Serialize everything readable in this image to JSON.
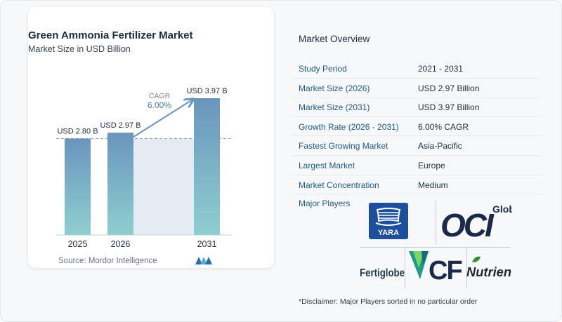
{
  "chart_data": {
    "type": "bar",
    "title": "Green Ammonia Fertilizer Market",
    "subtitle": "Market Size in USD Billion",
    "categories": [
      "2025",
      "2026",
      "2031"
    ],
    "values": [
      2.8,
      2.97,
      3.97
    ],
    "value_labels": [
      "USD 2.80 B",
      "USD 2.97 B",
      "USD 3.97 B"
    ],
    "annotation": {
      "label": "CAGR",
      "value": "6.00%"
    },
    "ylim": [
      0,
      4.2
    ],
    "grid": false,
    "bar_colors": {
      "top": "#6a95bd",
      "bottom": "#8ecfcf"
    },
    "reference_line": "dashed at 2025 level"
  },
  "source": "Source:  Mordor Intelligence",
  "overview": {
    "title": "Market Overview",
    "rows": [
      {
        "label": "Study Period",
        "value": "2021 - 2031"
      },
      {
        "label": "Market Size (2026)",
        "value": "USD 2.97 Billion"
      },
      {
        "label": "Market Size (2031)",
        "value": "USD 3.97 Billion"
      },
      {
        "label": "Growth Rate (2026 - 2031)",
        "value": "6.00% CAGR"
      },
      {
        "label": "Fastest Growing Market",
        "value": "Asia-Pacific"
      },
      {
        "label": "Largest Market",
        "value": "Europe"
      },
      {
        "label": "Market Concentration",
        "value": "Medium"
      }
    ],
    "players_label": "Major Players",
    "players": [
      {
        "name": "YARA"
      },
      {
        "name": "OCI",
        "suffix": "Global"
      },
      {
        "name": "Fertiglobe"
      },
      {
        "name": "CF"
      },
      {
        "name": "Nutrien"
      }
    ]
  },
  "disclaimer": "*Disclaimer: Major Players sorted in no particular order",
  "colors": {
    "accent_blue": "#1f5a8a",
    "yara_blue": "#1d4f9c",
    "oci_navy": "#1b2a4a",
    "cf_green": "#2aa84a",
    "nutrien_green": "#3b8b2e",
    "nutrien_text": "#1e2a26"
  }
}
